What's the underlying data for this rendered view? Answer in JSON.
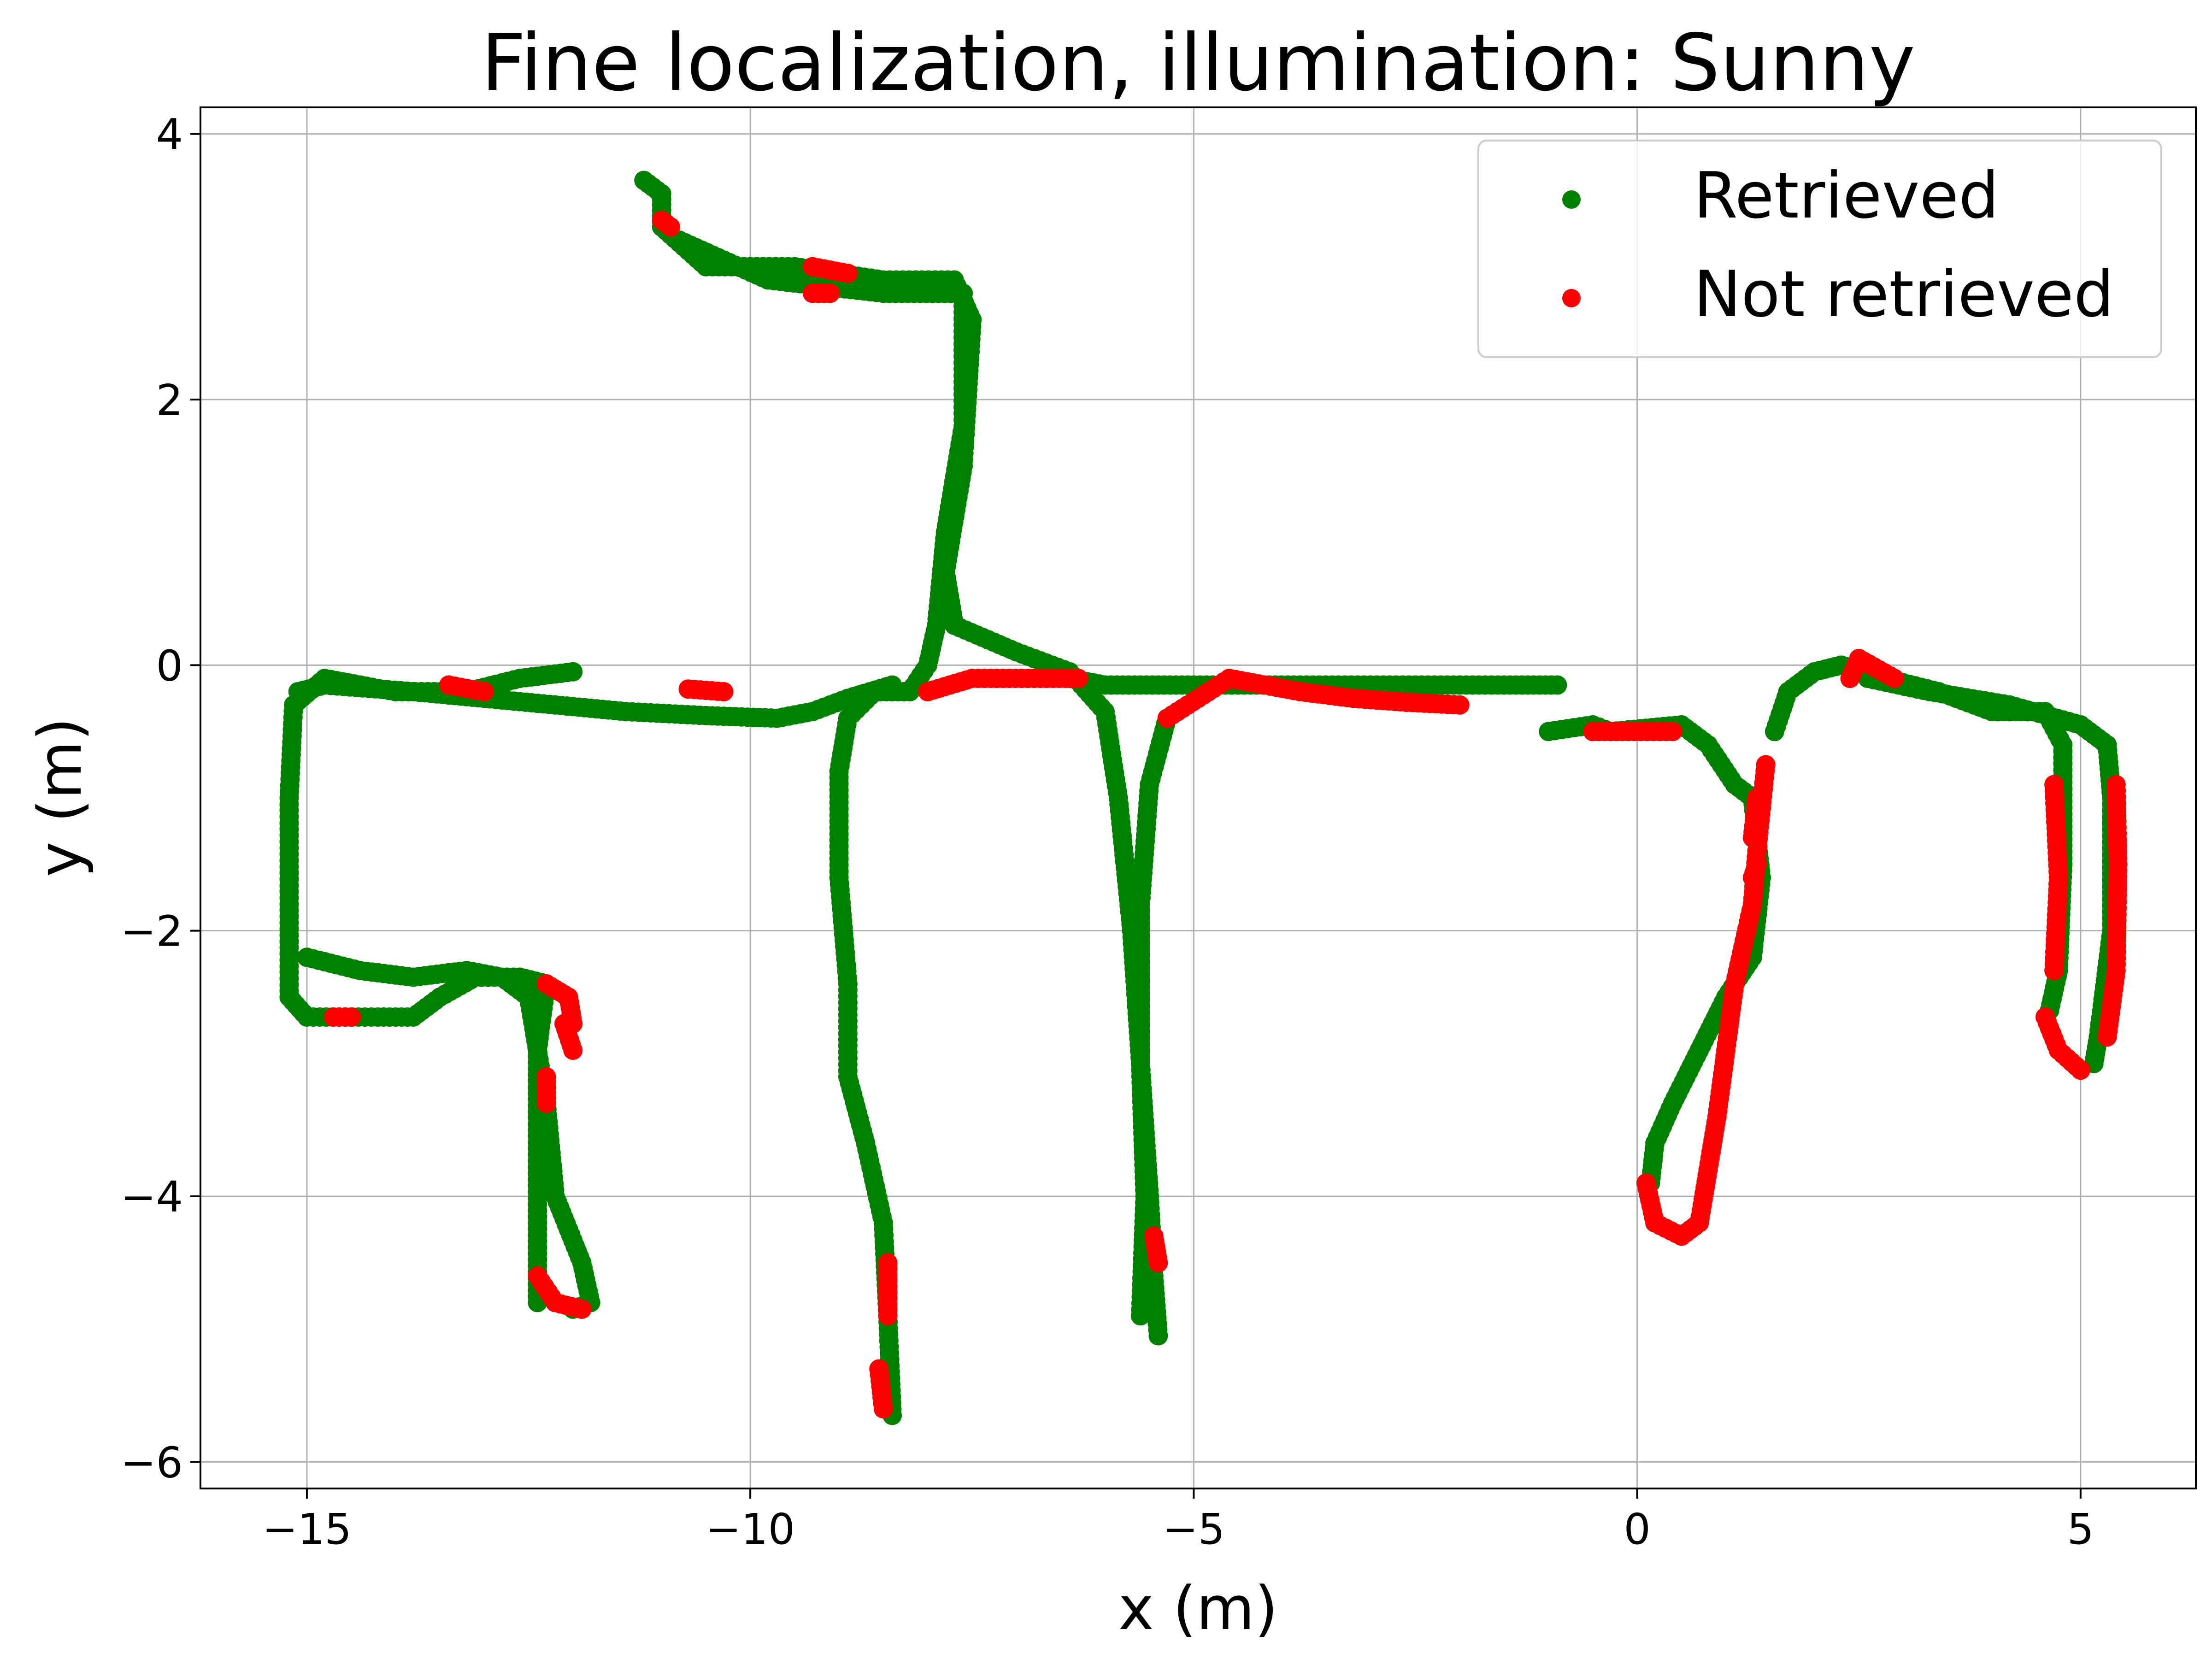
{
  "chart_data": {
    "type": "scatter",
    "title": "Fine localization, illumination: Sunny",
    "xlabel": "x (m)",
    "ylabel": "y (m)",
    "xlim": [
      -16.2,
      6.3
    ],
    "ylim": [
      -6.2,
      4.2
    ],
    "xticks": [
      -15,
      -10,
      -5,
      0,
      5
    ],
    "yticks": [
      -6,
      -4,
      -2,
      0,
      2,
      4
    ],
    "xtick_labels": [
      "−15",
      "−10",
      "−5",
      "0",
      "5"
    ],
    "ytick_labels": [
      "−6",
      "−4",
      "−2",
      "0",
      "2",
      "4"
    ],
    "grid": true,
    "legend_position": "top-right",
    "series": [
      {
        "name": "Retrieved",
        "color": "#008000",
        "paths": [
          [
            [
              -11.2,
              3.65
            ],
            [
              -11.0,
              3.55
            ],
            [
              -11.0,
              3.3
            ],
            [
              -10.5,
              3.0
            ],
            [
              -9.5,
              3.0
            ],
            [
              -8.5,
              2.9
            ],
            [
              -7.7,
              2.9
            ],
            [
              -7.5,
              2.6
            ],
            [
              -7.6,
              1.5
            ],
            [
              -7.8,
              0.7
            ],
            [
              -7.7,
              0.3
            ],
            [
              -7.0,
              0.1
            ],
            [
              -6.4,
              -0.05
            ],
            [
              -6.0,
              -0.35
            ],
            [
              -5.85,
              -1.0
            ],
            [
              -5.7,
              -2.0
            ],
            [
              -5.6,
              -3.0
            ],
            [
              -5.5,
              -4.0
            ],
            [
              -5.45,
              -4.6
            ],
            [
              -5.4,
              -5.05
            ]
          ],
          [
            [
              -10.8,
              3.2
            ],
            [
              -9.8,
              2.9
            ],
            [
              -8.5,
              2.8
            ],
            [
              -7.6,
              2.8
            ],
            [
              -7.6,
              1.8
            ],
            [
              -7.8,
              1.0
            ],
            [
              -7.9,
              0.3
            ],
            [
              -8.0,
              0.0
            ],
            [
              -8.2,
              -0.2
            ],
            [
              -8.6,
              -0.2
            ],
            [
              -8.9,
              -0.4
            ],
            [
              -9.0,
              -0.8
            ],
            [
              -9.0,
              -1.6
            ],
            [
              -8.9,
              -2.4
            ],
            [
              -8.9,
              -3.1
            ],
            [
              -8.7,
              -3.6
            ],
            [
              -8.5,
              -4.2
            ],
            [
              -8.45,
              -4.9
            ],
            [
              -8.4,
              -5.65
            ]
          ],
          [
            [
              -6.4,
              -0.1
            ],
            [
              -6.0,
              -0.15
            ],
            [
              -5.6,
              -0.15
            ],
            [
              -5.0,
              -0.15
            ],
            [
              -4.5,
              -0.15
            ],
            [
              -3.8,
              -0.15
            ],
            [
              -2.5,
              -0.15
            ],
            [
              -1.5,
              -0.15
            ],
            [
              -0.9,
              -0.15
            ]
          ],
          [
            [
              -8.4,
              -0.15
            ],
            [
              -8.9,
              -0.25
            ],
            [
              -9.3,
              -0.35
            ],
            [
              -9.7,
              -0.4
            ],
            [
              -10.5,
              -0.38
            ],
            [
              -11.4,
              -0.35
            ],
            [
              -12.2,
              -0.3
            ],
            [
              -13.0,
              -0.25
            ],
            [
              -13.8,
              -0.2
            ],
            [
              -14.8,
              -0.15
            ],
            [
              -15.1,
              -0.2
            ]
          ],
          [
            [
              -12.0,
              -0.05
            ],
            [
              -12.6,
              -0.1
            ],
            [
              -13.2,
              -0.2
            ],
            [
              -14.0,
              -0.2
            ],
            [
              -14.8,
              -0.1
            ],
            [
              -15.15,
              -0.3
            ],
            [
              -15.2,
              -1.0
            ],
            [
              -15.2,
              -1.8
            ],
            [
              -15.2,
              -2.5
            ],
            [
              -15.0,
              -2.65
            ],
            [
              -14.2,
              -2.65
            ],
            [
              -13.8,
              -2.65
            ],
            [
              -13.5,
              -2.5
            ],
            [
              -13.1,
              -2.35
            ],
            [
              -12.6,
              -2.35
            ],
            [
              -12.3,
              -2.4
            ],
            [
              -12.4,
              -2.9
            ],
            [
              -12.4,
              -3.5
            ],
            [
              -12.4,
              -4.2
            ],
            [
              -12.4,
              -4.8
            ]
          ],
          [
            [
              -15.0,
              -2.2
            ],
            [
              -14.4,
              -2.3
            ],
            [
              -13.8,
              -2.35
            ],
            [
              -13.2,
              -2.3
            ],
            [
              -12.8,
              -2.35
            ],
            [
              -12.5,
              -2.5
            ],
            [
              -12.3,
              -3.3
            ],
            [
              -12.2,
              -4.0
            ],
            [
              -11.9,
              -4.5
            ],
            [
              -11.8,
              -4.8
            ],
            [
              -12.0,
              -4.85
            ]
          ],
          [
            [
              -5.3,
              -0.4
            ],
            [
              -5.5,
              -0.9
            ],
            [
              -5.6,
              -1.8
            ],
            [
              -5.6,
              -3.0
            ],
            [
              -5.55,
              -4.0
            ],
            [
              -5.6,
              -4.9
            ]
          ],
          [
            [
              -1.0,
              -0.5
            ],
            [
              -0.5,
              -0.45
            ],
            [
              -0.3,
              -0.5
            ],
            [
              0.5,
              -0.45
            ],
            [
              0.8,
              -0.6
            ],
            [
              1.1,
              -0.9
            ],
            [
              1.3,
              -1.0
            ],
            [
              1.4,
              -1.6
            ],
            [
              1.3,
              -2.2
            ],
            [
              1.0,
              -2.5
            ],
            [
              0.7,
              -2.9
            ],
            [
              0.4,
              -3.3
            ],
            [
              0.2,
              -3.6
            ],
            [
              0.15,
              -3.9
            ]
          ],
          [
            [
              1.55,
              -0.5
            ],
            [
              1.7,
              -0.2
            ],
            [
              2.0,
              -0.05
            ],
            [
              2.3,
              0.0
            ],
            [
              2.8,
              -0.1
            ],
            [
              3.4,
              -0.2
            ],
            [
              4.0,
              -0.35
            ],
            [
              4.6,
              -0.35
            ],
            [
              4.8,
              -0.6
            ],
            [
              4.8,
              -1.5
            ],
            [
              4.75,
              -2.3
            ],
            [
              4.65,
              -2.6
            ]
          ],
          [
            [
              2.6,
              -0.1
            ],
            [
              3.3,
              -0.2
            ],
            [
              4.2,
              -0.3
            ],
            [
              5.0,
              -0.45
            ],
            [
              5.3,
              -0.6
            ],
            [
              5.35,
              -1.0
            ],
            [
              5.35,
              -2.0
            ],
            [
              5.2,
              -2.8
            ],
            [
              5.15,
              -3.0
            ]
          ]
        ]
      },
      {
        "name": "Not retrieved",
        "color": "#ff0000",
        "paths": [
          [
            [
              -11.0,
              3.35
            ],
            [
              -10.9,
              3.3
            ]
          ],
          [
            [
              -9.3,
              3.0
            ],
            [
              -8.9,
              2.95
            ]
          ],
          [
            [
              -9.3,
              2.8
            ],
            [
              -9.1,
              2.8
            ]
          ],
          [
            [
              -8.0,
              -0.2
            ],
            [
              -7.5,
              -0.1
            ],
            [
              -6.8,
              -0.1
            ],
            [
              -6.3,
              -0.1
            ]
          ],
          [
            [
              -5.3,
              -0.4
            ],
            [
              -4.6,
              -0.1
            ],
            [
              -3.8,
              -0.2
            ],
            [
              -3.2,
              -0.25
            ],
            [
              -2.6,
              -0.28
            ],
            [
              -2.0,
              -0.3
            ]
          ],
          [
            [
              -0.5,
              -0.5
            ],
            [
              -0.1,
              -0.5
            ],
            [
              0.4,
              -0.5
            ]
          ],
          [
            [
              -13.4,
              -0.15
            ],
            [
              -13.0,
              -0.2
            ]
          ],
          [
            [
              -10.7,
              -0.18
            ],
            [
              -10.3,
              -0.2
            ]
          ],
          [
            [
              -12.3,
              -2.4
            ],
            [
              -12.05,
              -2.5
            ],
            [
              -12.0,
              -2.7
            ]
          ],
          [
            [
              -12.0,
              -2.9
            ],
            [
              -12.1,
              -2.7
            ]
          ],
          [
            [
              -12.3,
              -3.1
            ],
            [
              -12.3,
              -3.3
            ]
          ],
          [
            [
              -12.4,
              -4.6
            ],
            [
              -12.2,
              -4.8
            ],
            [
              -11.9,
              -4.85
            ]
          ],
          [
            [
              -14.7,
              -2.65
            ],
            [
              -14.5,
              -2.65
            ]
          ],
          [
            [
              -8.45,
              -4.5
            ],
            [
              -8.45,
              -4.9
            ]
          ],
          [
            [
              -8.55,
              -5.3
            ],
            [
              -8.5,
              -5.6
            ]
          ],
          [
            [
              -5.45,
              -4.3
            ],
            [
              -5.4,
              -4.5
            ]
          ],
          [
            [
              1.45,
              -0.75
            ],
            [
              1.35,
              -1.4
            ],
            [
              1.3,
              -1.8
            ],
            [
              1.1,
              -2.4
            ],
            [
              1.0,
              -2.9
            ],
            [
              0.9,
              -3.4
            ],
            [
              0.8,
              -3.8
            ],
            [
              0.7,
              -4.2
            ],
            [
              0.5,
              -4.3
            ],
            [
              0.2,
              -4.2
            ],
            [
              0.1,
              -3.9
            ]
          ],
          [
            [
              1.35,
              -1.0
            ],
            [
              1.3,
              -1.3
            ]
          ],
          [
            [
              1.35,
              -1.5
            ],
            [
              1.3,
              -1.6
            ]
          ],
          [
            [
              4.7,
              -0.9
            ],
            [
              4.75,
              -1.6
            ],
            [
              4.7,
              -2.3
            ]
          ],
          [
            [
              5.4,
              -0.9
            ],
            [
              5.42,
              -1.5
            ],
            [
              5.4,
              -2.3
            ],
            [
              5.3,
              -2.8
            ]
          ],
          [
            [
              4.6,
              -2.65
            ],
            [
              4.75,
              -2.9
            ],
            [
              5.0,
              -3.05
            ]
          ],
          [
            [
              2.4,
              -0.1
            ],
            [
              2.5,
              0.05
            ],
            [
              2.9,
              -0.1
            ]
          ]
        ]
      }
    ]
  }
}
